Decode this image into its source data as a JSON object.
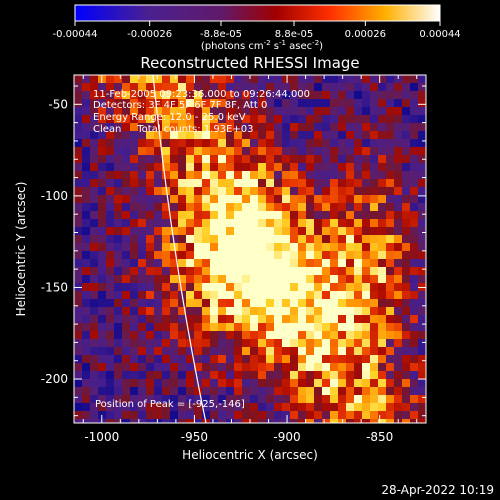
{
  "chart_data": {
    "type": "heatmap",
    "title": "Reconstructed RHESSI Image",
    "xlabel": "Heliocentric X (arcsec)",
    "ylabel": "Heliocentric Y (arcsec)",
    "xlim": [
      -1015,
      -825
    ],
    "ylim": [
      -224,
      -34
    ],
    "x_ticks": [
      -1000,
      -950,
      -900,
      -850
    ],
    "y_ticks": [
      -50,
      -100,
      -150,
      -200
    ],
    "x_tick_labels": [
      "-1000",
      "-950",
      "-900",
      "-850"
    ],
    "y_tick_labels": [
      "-50",
      "-100",
      "-150",
      "-200"
    ],
    "colorbar": {
      "ticks": [
        -0.00044,
        -0.00026,
        -8.8e-05,
        8.8e-05,
        0.00026,
        0.00044
      ],
      "tick_labels": [
        "-0.00044",
        "-0.00026",
        "-8.8e-05",
        "8.8e-05",
        "0.00026",
        "0.00044"
      ],
      "range": [
        -0.00044,
        0.00044
      ]
    },
    "info_lines": [
      "11-Feb-2005 09:23:36.000 to 09:26:44.000",
      "Detectors: 3F 4F 5F 6F 7F 8F, Att 0",
      "Energy Range: 12.0 - 25.0 keV",
      "Clean     Total counts: 1.93E+03"
    ],
    "peak_label": "Position of Peak = [-925,-146]",
    "peak_position": [
      -925,
      -146
    ],
    "date_stamp": "28-Apr-2022 10:19"
  }
}
